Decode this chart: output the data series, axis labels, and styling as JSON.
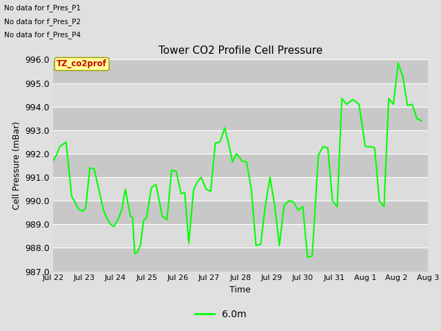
{
  "title": "Tower CO2 Profile Cell Pressure",
  "ylabel": "Cell Pressure (mBar)",
  "xlabel": "Time",
  "legend_label": "6.0m",
  "line_color": "#00FF00",
  "fig_facecolor": "#E0E0E0",
  "plot_bg_color": "#D0D0D0",
  "band_light": "#DCDCDC",
  "band_dark": "#C8C8C8",
  "ylim": [
    987.0,
    996.0
  ],
  "yticks": [
    987.0,
    988.0,
    989.0,
    990.0,
    991.0,
    992.0,
    993.0,
    994.0,
    995.0,
    996.0
  ],
  "xtick_labels": [
    "Jul 22",
    "Jul 23",
    "Jul 24",
    "Jul 25",
    "Jul 26",
    "Jul 27",
    "Jul 28",
    "Jul 29",
    "Jul 30",
    "Jul 31",
    "Aug 1",
    "Aug 2",
    "Aug 3"
  ],
  "no_data_texts": [
    "No data for f_Pres_P1",
    "No data for f_Pres_P2",
    "No data for f_Pres_P4"
  ],
  "legend_box_text": "TZ_co2prof",
  "legend_box_color": "#FFFF99",
  "legend_box_text_color": "#CC0000",
  "x_values": [
    0.0,
    0.1,
    0.22,
    0.42,
    0.6,
    0.82,
    0.95,
    1.05,
    1.18,
    1.32,
    1.5,
    1.62,
    1.75,
    1.85,
    1.95,
    2.08,
    2.2,
    2.32,
    2.4,
    2.48,
    2.55,
    2.62,
    2.7,
    2.8,
    2.9,
    3.0,
    3.15,
    3.3,
    3.5,
    3.65,
    3.8,
    3.95,
    4.1,
    4.22,
    4.35,
    4.5,
    4.62,
    4.75,
    4.9,
    5.05,
    5.2,
    5.35,
    5.5,
    5.62,
    5.75,
    5.88,
    6.05,
    6.2,
    6.35,
    6.5,
    6.65,
    6.8,
    6.95,
    7.1,
    7.25,
    7.4,
    7.55,
    7.7,
    7.85,
    8.0,
    8.15,
    8.3,
    8.5,
    8.65,
    8.8,
    8.95,
    9.1,
    9.25,
    9.4,
    9.6,
    9.8,
    10.0,
    10.15,
    10.3,
    10.45,
    10.6,
    10.75,
    10.9,
    11.05,
    11.2,
    11.35,
    11.5,
    11.65,
    11.8
  ],
  "y_values": [
    991.7,
    991.9,
    992.3,
    992.5,
    990.2,
    989.65,
    989.55,
    989.7,
    991.4,
    991.35,
    990.3,
    989.6,
    989.2,
    989.0,
    988.9,
    989.2,
    989.6,
    990.5,
    989.9,
    989.35,
    989.3,
    987.75,
    987.8,
    988.1,
    989.15,
    989.3,
    990.55,
    990.7,
    989.35,
    989.2,
    991.3,
    991.25,
    990.3,
    990.35,
    988.2,
    990.45,
    990.8,
    991.0,
    990.5,
    990.4,
    992.45,
    992.5,
    993.1,
    992.45,
    991.65,
    992.0,
    991.7,
    991.65,
    990.5,
    988.1,
    988.15,
    989.8,
    991.0,
    989.8,
    988.1,
    989.8,
    990.0,
    989.95,
    989.6,
    989.75,
    987.6,
    987.65,
    991.95,
    992.3,
    992.25,
    990.0,
    989.75,
    994.35,
    994.1,
    994.3,
    994.1,
    992.3,
    992.3,
    992.25,
    990.0,
    989.75,
    994.35,
    994.1,
    995.85,
    995.3,
    994.05,
    994.1,
    993.5,
    993.4
  ]
}
